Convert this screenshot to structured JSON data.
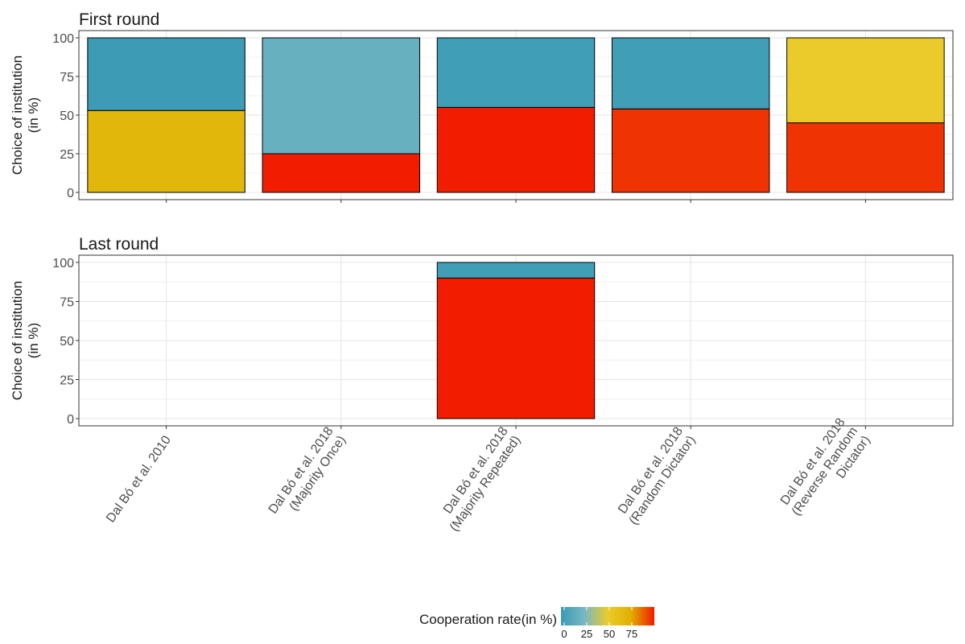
{
  "chart_data": {
    "type": "bar",
    "stacked": true,
    "ylabel": "Choice of institution\n(in %)",
    "ylim": [
      0,
      100
    ],
    "yticks": [
      0,
      25,
      50,
      75,
      100
    ],
    "grid": true,
    "categories": [
      "Dal Bó et al. 2010",
      "Dal Bó et al. 2018\n(Majority Once)",
      "Dal Bó et al. 2018\n(Majority Repeated)",
      "Dal Bó et al. 2018\n(Random Dictator)",
      "Dal Bó et al. 2018\n(Reverse Random\nDictator)"
    ],
    "facets": [
      {
        "title": "First round",
        "bars": [
          {
            "segments": [
              {
                "value": 53,
                "color": "#e2b70b"
              },
              {
                "value": 47,
                "color": "#3e9bb5"
              }
            ]
          },
          {
            "segments": [
              {
                "value": 25,
                "color": "#f21d00"
              },
              {
                "value": 75,
                "color": "#67b0c0"
              }
            ]
          },
          {
            "segments": [
              {
                "value": 55,
                "color": "#f21d00"
              },
              {
                "value": 45,
                "color": "#409eb6"
              }
            ]
          },
          {
            "segments": [
              {
                "value": 54,
                "color": "#f03302"
              },
              {
                "value": 46,
                "color": "#409eb6"
              }
            ]
          },
          {
            "segments": [
              {
                "value": 45,
                "color": "#f03302"
              },
              {
                "value": 55,
                "color": "#ebcb2b"
              }
            ]
          }
        ]
      },
      {
        "title": "Last round",
        "bars": [
          {
            "segments": []
          },
          {
            "segments": []
          },
          {
            "segments": [
              {
                "value": 90,
                "color": "#f21d00"
              },
              {
                "value": 10,
                "color": "#409eb6"
              }
            ]
          },
          {
            "segments": []
          },
          {
            "segments": []
          }
        ]
      }
    ],
    "legend": {
      "title": "Cooperation rate(in %)",
      "position": "bottom",
      "ticks": [
        0,
        25,
        50,
        75
      ],
      "range": [
        0,
        100
      ],
      "colors": [
        "#3b9ab2",
        "#78b7c5",
        "#ebcc2a",
        "#e1af00",
        "#f21a00"
      ]
    }
  }
}
